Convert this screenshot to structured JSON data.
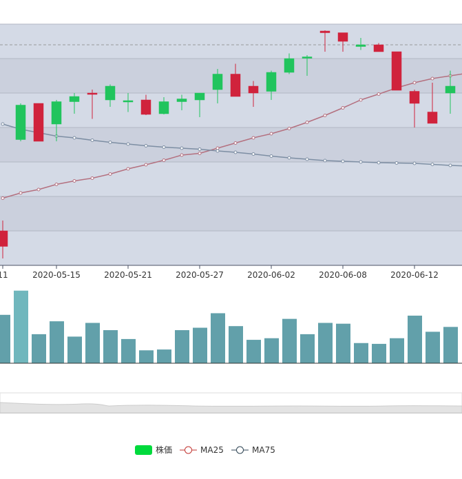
{
  "chart_data": {
    "type": "candlestick",
    "x_tick_labels": [
      "11",
      "2020-05-15",
      "2020-05-21",
      "2020-05-27",
      "2020-06-02",
      "2020-06-08",
      "2020-06-12"
    ],
    "colors": {
      "up": "#21c45d",
      "down": "#d0233c",
      "ma25": "#b4707f",
      "ma75": "#7d8ea3",
      "volume": "#62a0aa",
      "volume_highlight": "#70b7bd"
    },
    "candles": [
      {
        "o": 1.0,
        "c": 0.55,
        "h": 1.3,
        "l": 0.2
      },
      {
        "o": 3.65,
        "c": 4.65,
        "h": 4.7,
        "l": 3.6
      },
      {
        "o": 4.7,
        "c": 3.6,
        "h": 4.7,
        "l": 3.6
      },
      {
        "o": 4.1,
        "c": 4.75,
        "h": 4.8,
        "l": 3.6
      },
      {
        "o": 4.75,
        "c": 4.9,
        "h": 5.0,
        "l": 4.4
      },
      {
        "o": 5.0,
        "c": 4.98,
        "h": 5.1,
        "l": 4.25
      },
      {
        "o": 4.8,
        "c": 5.2,
        "h": 5.25,
        "l": 4.6
      },
      {
        "o": 4.77,
        "c": 4.78,
        "h": 5.0,
        "l": 4.45
      },
      {
        "o": 4.8,
        "c": 4.38,
        "h": 4.95,
        "l": 4.36
      },
      {
        "o": 4.4,
        "c": 4.75,
        "h": 4.88,
        "l": 4.38
      },
      {
        "o": 4.75,
        "c": 4.83,
        "h": 4.95,
        "l": 4.5
      },
      {
        "o": 4.8,
        "c": 5.0,
        "h": 5.0,
        "l": 4.3
      },
      {
        "o": 5.1,
        "c": 5.55,
        "h": 5.7,
        "l": 4.7
      },
      {
        "o": 5.55,
        "c": 4.9,
        "h": 5.85,
        "l": 4.9
      },
      {
        "o": 5.2,
        "c": 5.0,
        "h": 5.35,
        "l": 4.6
      },
      {
        "o": 5.05,
        "c": 5.6,
        "h": 5.65,
        "l": 4.8
      },
      {
        "o": 5.6,
        "c": 6.0,
        "h": 6.15,
        "l": 5.55
      },
      {
        "o": 6.02,
        "c": 6.05,
        "h": 6.1,
        "l": 5.5
      },
      {
        "o": 6.8,
        "c": 6.75,
        "h": 6.82,
        "l": 6.2
      },
      {
        "o": 6.75,
        "c": 6.5,
        "h": 6.75,
        "l": 6.2
      },
      {
        "o": 6.35,
        "c": 6.4,
        "h": 6.6,
        "l": 6.25
      },
      {
        "o": 6.4,
        "c": 6.2,
        "h": 6.45,
        "l": 6.2
      },
      {
        "o": 6.2,
        "c": 5.08,
        "h": 6.2,
        "l": 5.08
      },
      {
        "o": 5.05,
        "c": 4.7,
        "h": 5.1,
        "l": 4.0
      },
      {
        "o": 4.45,
        "c": 4.12,
        "h": 5.3,
        "l": 4.12
      },
      {
        "o": 5.0,
        "c": 5.2,
        "h": 5.65,
        "l": 4.4
      }
    ],
    "ma25": [
      1.95,
      2.1,
      2.2,
      2.35,
      2.45,
      2.53,
      2.65,
      2.8,
      2.92,
      3.05,
      3.2,
      3.25,
      3.4,
      3.55,
      3.7,
      3.82,
      3.97,
      4.15,
      4.35,
      4.57,
      4.8,
      4.97,
      5.15,
      5.3,
      5.42,
      5.5,
      5.58
    ],
    "ma75": [
      4.1,
      3.95,
      3.85,
      3.75,
      3.7,
      3.63,
      3.57,
      3.52,
      3.47,
      3.43,
      3.4,
      3.37,
      3.32,
      3.28,
      3.23,
      3.17,
      3.12,
      3.08,
      3.04,
      3.02,
      3.0,
      2.98,
      2.97,
      2.96,
      2.93,
      2.9,
      2.88,
      2.87
    ],
    "volume": [
      0.6,
      0.9,
      0.36,
      0.52,
      0.33,
      0.5,
      0.41,
      0.3,
      0.16,
      0.17,
      0.41,
      0.44,
      0.62,
      0.46,
      0.29,
      0.31,
      0.55,
      0.36,
      0.5,
      0.49,
      0.25,
      0.24,
      0.31,
      0.59,
      0.39,
      0.45
    ],
    "legend": [
      {
        "name": "株価",
        "kind": "box"
      },
      {
        "name": "MA25",
        "kind": "line"
      },
      {
        "name": "MA75",
        "kind": "line"
      }
    ],
    "ylim": [
      0,
      7
    ],
    "dashed_reference_line": 6.4,
    "has_data_zoom_slider": true,
    "grid": true,
    "legend_position": "bottom-center"
  }
}
